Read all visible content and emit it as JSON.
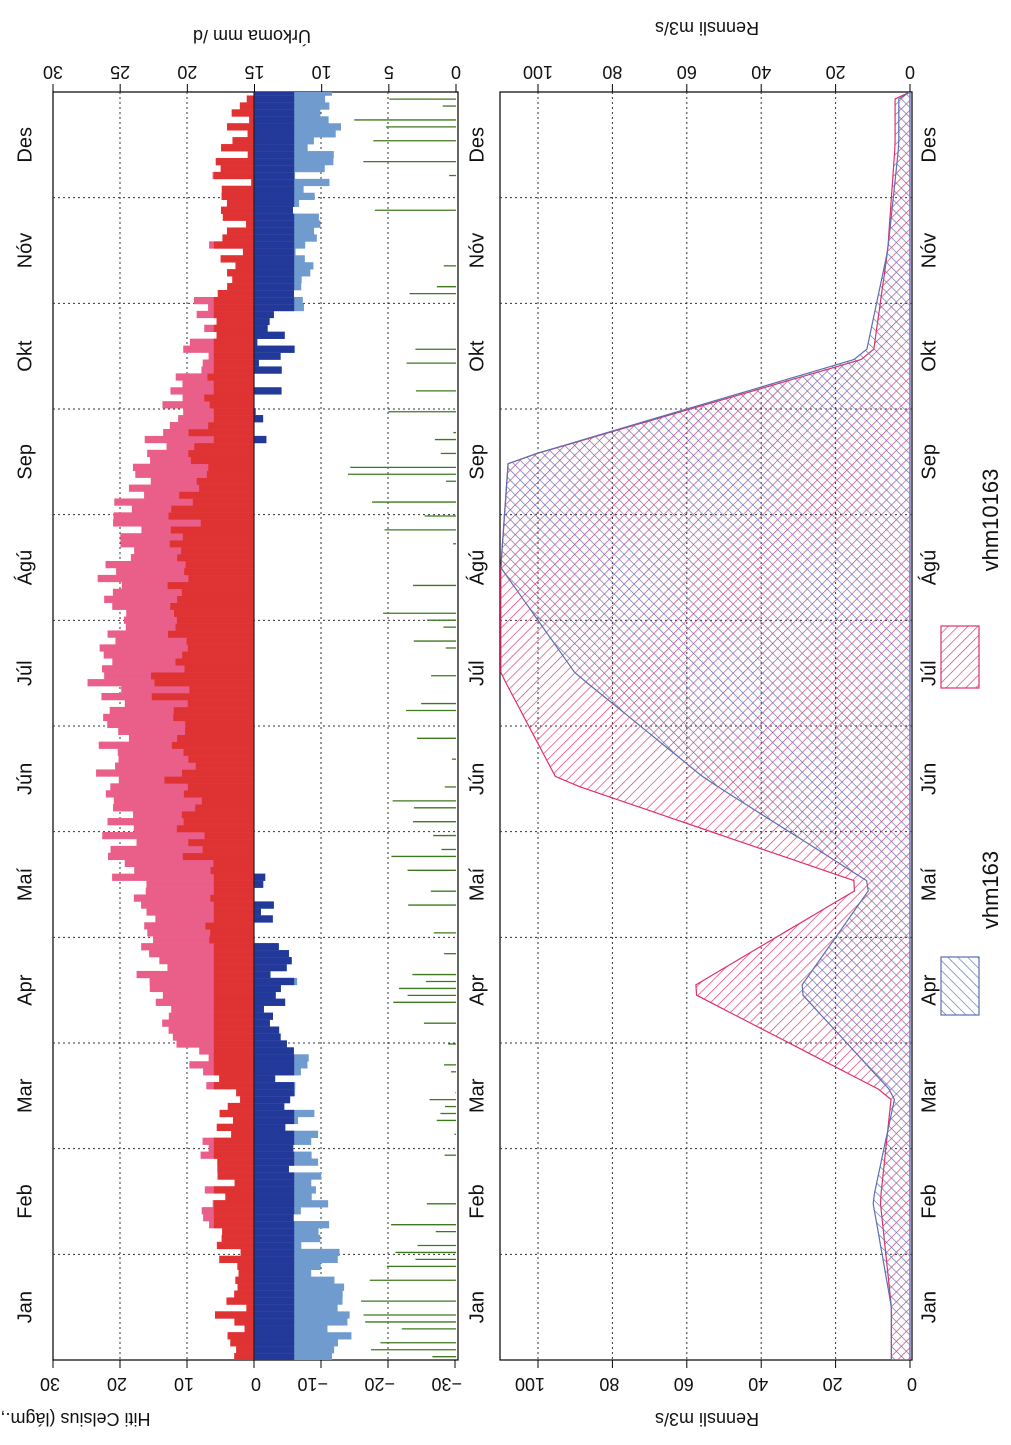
{
  "months": [
    "Jan",
    "Feb",
    "Mar",
    "Apr",
    "Maí",
    "Jún",
    "Júl",
    "Ágú",
    "Sep",
    "Okt",
    "Nóv",
    "Des"
  ],
  "colors": {
    "temp_max": "#e0306a",
    "temp_max_fill": "#ea5e8a",
    "temp_mid": "#dd2a22",
    "temp_min": "#6f9bcf",
    "temp_cold": "#23399a",
    "precip": "#3d7a1e",
    "flow_vhm10163": "#e0306a",
    "flow_vhm163": "#5b6fb3",
    "grid": "#333333"
  },
  "chart_data": [
    {
      "type": "area",
      "title": "",
      "ylabel": "Hiti Celsius (lágm., hám.)",
      "ylabel2": "Úrkoma mm /d",
      "ylim": [
        -30,
        30
      ],
      "ylim2": [
        0,
        30
      ],
      "yticks": [
        "30",
        "20",
        "10",
        "0",
        "−10",
        "−20",
        "−30"
      ],
      "yticks2": [
        "30",
        "25",
        "20",
        "15",
        "10",
        "5",
        "0"
      ],
      "x_categories": [
        "Jan",
        "Feb",
        "Mar",
        "Apr",
        "Maí",
        "Jún",
        "Júl",
        "Ágú",
        "Sep",
        "Okt",
        "Nóv",
        "Des"
      ],
      "series": [
        {
          "kind": "temp_max",
          "values": [
            3,
            6,
            5,
            14,
            19,
            21,
            22,
            21,
            17,
            8,
            4,
            3
          ]
        },
        {
          "kind": "temp_min",
          "values": [
            -12,
            -8,
            -6,
            -4,
            1,
            5,
            7,
            6,
            2,
            -3,
            -7,
            -10
          ]
        },
        {
          "kind": "precip",
          "values": [
            6,
            5,
            4,
            4,
            4,
            5,
            5,
            6,
            7,
            8,
            8,
            7
          ]
        }
      ]
    },
    {
      "type": "area",
      "title": "",
      "ylabel": "Rennsli m3/s",
      "ylabel2": "Rennsli m3/s",
      "ylim": [
        0,
        110
      ],
      "yticks": [
        "100",
        "80",
        "60",
        "40",
        "20",
        "0"
      ],
      "grid": true,
      "legend_position": "bottom-right",
      "x_categories": [
        "Jan",
        "Feb",
        "Mar",
        "Apr",
        "Maí",
        "Jún",
        "Júl",
        "Ágú",
        "Sep",
        "Okt",
        "Nóv",
        "Des"
      ],
      "series": [
        {
          "name": "vhm10163",
          "values": [
            5,
            8,
            5,
            60,
            12,
            95,
            110,
            110,
            108,
            10,
            6,
            4
          ]
        },
        {
          "name": "vhm163",
          "values": [
            5,
            10,
            4,
            30,
            10,
            55,
            90,
            110,
            108,
            12,
            6,
            3
          ]
        }
      ]
    }
  ]
}
